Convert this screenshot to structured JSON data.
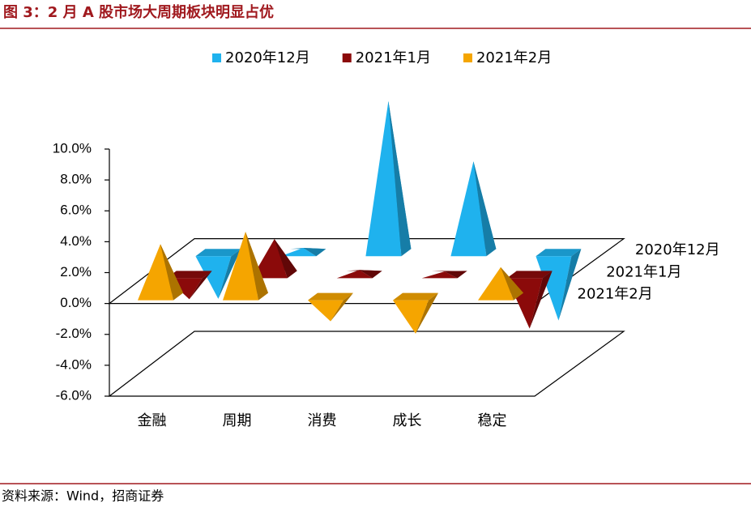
{
  "chart_data": {
    "type": "pyramid3d",
    "title": "图 3：2 月 A 股市场大周期板块明显占优",
    "source": "资料来源：Wind，招商证券",
    "categories": [
      "金融",
      "周期",
      "消费",
      "成长",
      "稳定"
    ],
    "series": [
      {
        "name": "2020年12月",
        "color": "#1fb2ee",
        "values": [
          -3.0,
          0.3,
          9.8,
          5.9,
          -4.4
        ]
      },
      {
        "name": "2021年1月",
        "color": "#8b0a0a",
        "values": [
          -1.6,
          2.3,
          0.3,
          0.2,
          -3.5
        ]
      },
      {
        "name": "2021年2月",
        "color": "#f5a500",
        "values": [
          3.4,
          4.2,
          -1.6,
          -2.4,
          1.9
        ]
      }
    ],
    "ylim": [
      -6,
      10
    ],
    "yticks": [
      {
        "value": -6,
        "label": "-6.0%"
      },
      {
        "value": -4,
        "label": "-4.0%"
      },
      {
        "value": -2,
        "label": "-2.0%"
      },
      {
        "value": 0,
        "label": "0.0%"
      },
      {
        "value": 2,
        "label": "2.0%"
      },
      {
        "value": 4,
        "label": "4.0%"
      },
      {
        "value": 6,
        "label": "6.0%"
      },
      {
        "value": 8,
        "label": "8.0%"
      },
      {
        "value": 10,
        "label": "10.0%"
      }
    ],
    "legend": "top"
  }
}
